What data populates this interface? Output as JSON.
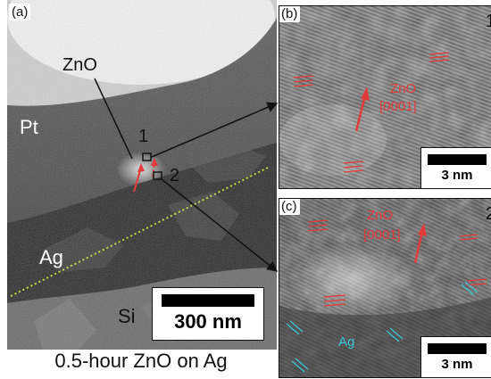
{
  "panel_a": {
    "label": "(a)",
    "region_labels": {
      "zno": "ZnO",
      "pt": "Pt",
      "ag": "Ag",
      "si": "Si"
    },
    "point_labels": {
      "p1": "1",
      "p2": "2"
    },
    "scale_bar": "300 nm",
    "caption": "0.5-hour ZnO on Ag"
  },
  "panel_b": {
    "label": "(b)",
    "corner_number": "1",
    "annotation_line1": "ZnO",
    "annotation_line2": "[0001]",
    "scale_bar": "3 nm"
  },
  "panel_c": {
    "label": "(c)",
    "corner_number": "2",
    "annotation_line1": "ZnO",
    "annotation_line2": "[0001]",
    "ag_label": "Ag",
    "scale_bar": "3 nm"
  },
  "colors": {
    "annotation_red": "#e23b3b",
    "annotation_cyan": "#3fc6d6",
    "interface_line": "#c8d84a"
  }
}
